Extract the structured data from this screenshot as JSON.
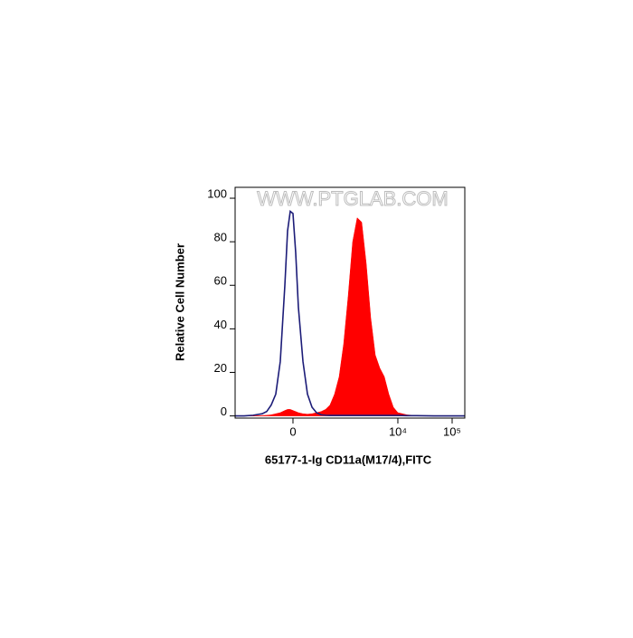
{
  "chart_data": {
    "type": "area",
    "watermark": "WWW.PTGLAB.COM",
    "x_label": "65177-1-Ig CD11a(M17/4),FITC",
    "y_label": "Relative Cell Number",
    "xscale": "asinh",
    "xlim": [
      -1350,
      171200
    ],
    "xticks": [
      0,
      {
        "value": 10000,
        "label": "10⁴"
      },
      {
        "value": 100000,
        "label": "10⁵"
      }
    ],
    "ylim": [
      -1,
      105
    ],
    "yticks": [
      0,
      20,
      40,
      60,
      80,
      100
    ],
    "x": [
      -1350,
      -913,
      -612,
      -400,
      -318,
      -248,
      -186,
      -132,
      -82,
      -54,
      -27,
      0,
      27,
      54,
      102,
      153,
      210,
      274,
      350,
      436,
      537,
      661,
      811,
      988,
      1203,
      1460,
      1773,
      2151,
      2609,
      3163,
      3834,
      4646,
      5630,
      6820,
      8270,
      10020,
      14700,
      21580,
      46440,
      100200,
      171200
    ],
    "series": [
      {
        "color": "#1c1c78",
        "fill": false,
        "values": [
          0,
          0,
          0.3,
          1,
          2,
          5,
          10,
          25,
          60,
          85,
          94,
          93,
          75,
          50,
          25,
          10,
          4,
          1.5,
          0.5,
          0.3,
          0.2,
          0.2,
          0.2,
          0.2,
          0.2,
          0.2,
          0.2,
          0.2,
          0.2,
          0.2,
          0.2,
          0.2,
          0.2,
          0.2,
          0.2,
          0.2,
          0.1,
          0.1,
          0,
          0,
          0
        ]
      },
      {
        "color": "#ff0000",
        "fill": true,
        "values": [
          0,
          0,
          0,
          0.2,
          0.3,
          0.5,
          1,
          1.5,
          2.5,
          3,
          3,
          2.5,
          2,
          1.5,
          1,
          0.8,
          1,
          1.5,
          2,
          3,
          5,
          10,
          18,
          33,
          55,
          80,
          91,
          89,
          70,
          45,
          28,
          22,
          18,
          10,
          4,
          1.5,
          0.5,
          0.2,
          0,
          0,
          0
        ]
      }
    ]
  }
}
